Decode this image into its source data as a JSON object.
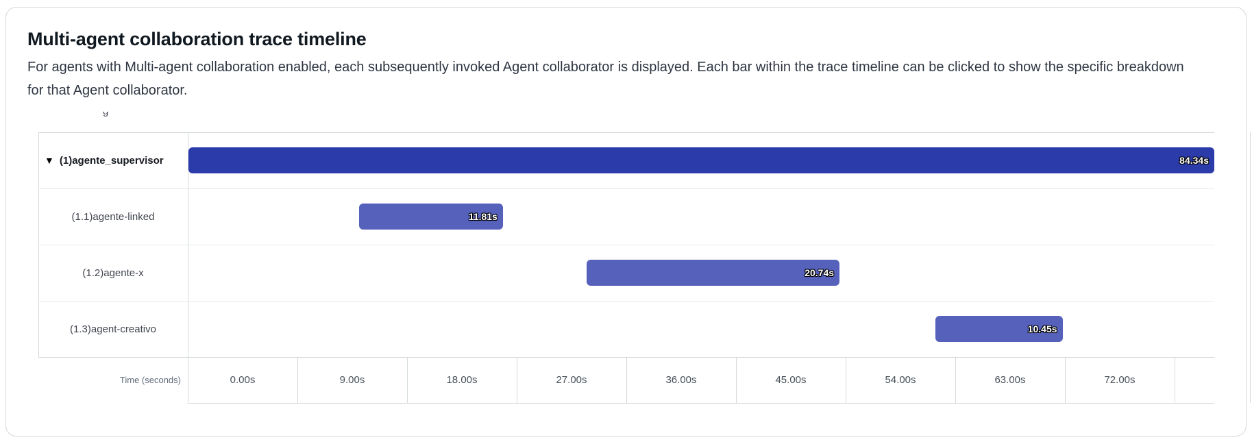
{
  "card": {
    "title": "Multi-agent collaboration trace timeline",
    "description": "For agents with Multi-agent collaboration enabled, each subsequently invoked Agent collaborator is displayed. Each bar within the trace timeline can be clicked to show the specific breakdown for that Agent collaborator."
  },
  "icons": {
    "expand_caret": "▼"
  },
  "clipped_artifact": "g",
  "colors": {
    "parent_bar": "#2b3caa",
    "child_bar": "#5561bb",
    "card_border": "#d3d9de",
    "grid_border": "#d4d9dd",
    "row_divider": "#e7e9eb"
  },
  "chart_data": {
    "type": "gantt-timeline",
    "title": "Multi-agent collaboration trace timeline",
    "time_axis": {
      "label": "Time (seconds)",
      "ticks": [
        "0.00s",
        "9.00s",
        "18.00s",
        "27.00s",
        "36.00s",
        "45.00s",
        "54.00s",
        "63.00s",
        "72.00s"
      ],
      "seconds_per_cell": 9,
      "range": [
        0,
        90
      ]
    },
    "rows": [
      {
        "label": "(1)agente_supervisor",
        "expandable": true,
        "expanded": true,
        "start_s": 0.0,
        "duration_s": 84.34,
        "duration_label": "84.34s",
        "bar_color": "#2b3caa"
      },
      {
        "label": "(1.1)agente-linked",
        "expandable": false,
        "start_s": 14.0,
        "duration_s": 11.81,
        "duration_label": "11.81s",
        "bar_color": "#5561bb"
      },
      {
        "label": "(1.2)agente-x",
        "expandable": false,
        "start_s": 32.7,
        "duration_s": 20.74,
        "duration_label": "20.74s",
        "bar_color": "#5561bb"
      },
      {
        "label": "(1.3)agent-creativo",
        "expandable": false,
        "start_s": 61.3,
        "duration_s": 10.45,
        "duration_label": "10.45s",
        "bar_color": "#5561bb"
      }
    ]
  }
}
